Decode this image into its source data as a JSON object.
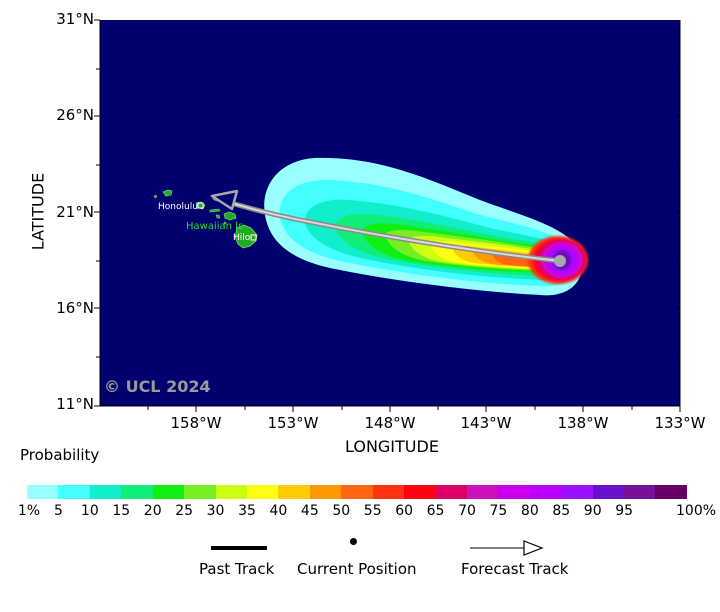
{
  "axes": {
    "ylabel": "LATITUDE",
    "xlabel": "LONGITUDE",
    "lat_ticks": [
      "31°N",
      "26°N",
      "21°N",
      "16°N",
      "11°N"
    ],
    "lon_ticks": [
      "158°W",
      "153°W",
      "148°W",
      "143°W",
      "138°W",
      "133°W"
    ]
  },
  "map": {
    "ocean_color": "#00006e",
    "land_color": "#22aa22",
    "copyright": "© UCL 2024",
    "places": {
      "honolulu": "Honolulu",
      "hawaiian_is": "Hawaiian Is",
      "hilo": "Hilo"
    }
  },
  "storm": {
    "current_position": {
      "lat": 18.4,
      "lon": -138.5
    },
    "forecast_end": {
      "lat": 21.6,
      "lon": -157.2
    },
    "track_color": "#a8a8a8"
  },
  "colorbar": {
    "title": "Probability",
    "labels": [
      "1%",
      "5",
      "10",
      "15",
      "20",
      "25",
      "30",
      "35",
      "40",
      "45",
      "50",
      "55",
      "60",
      "65",
      "70",
      "75",
      "80",
      "85",
      "90",
      "95",
      "100%"
    ],
    "colors": [
      "#99ffff",
      "#44ffff",
      "#11eecc",
      "#11ee77",
      "#11ee11",
      "#77ee22",
      "#ccff11",
      "#ffff11",
      "#ffcc00",
      "#ff9900",
      "#ff6611",
      "#ff3311",
      "#ff0011",
      "#dd0066",
      "#cc11bb",
      "#cc00ee",
      "#bb00ff",
      "#9911ff",
      "#6611cc",
      "#771199",
      "#660066"
    ]
  },
  "legend": {
    "past_track": "Past Track",
    "current_position": "Current Position",
    "forecast_track": "Forecast Track"
  }
}
